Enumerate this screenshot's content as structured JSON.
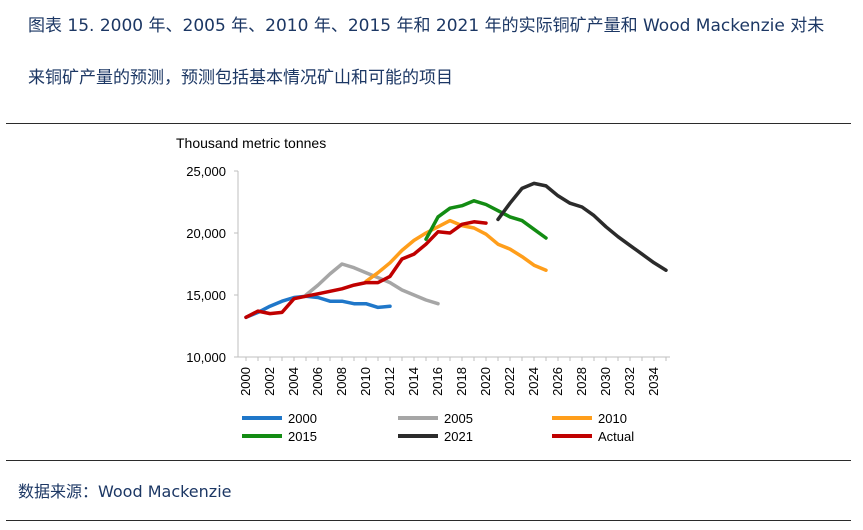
{
  "header": {
    "title_line1": "图表 15. 2000 年、2005 年、2010 年、2015 年和 2021 年的实际铜矿产量和 Wood Mackenzie 对未",
    "title_line2": "来铜矿产量的预测，预测包括基本情况矿山和可能的项目"
  },
  "footer": {
    "source": "数据来源：Wood Mackenzie"
  },
  "chart_data": {
    "type": "line",
    "ylabel": "Thousand metric tonnes",
    "ylim": [
      10000,
      25000
    ],
    "yticks": [
      10000,
      15000,
      20000,
      25000
    ],
    "ytick_labels": [
      "10,000",
      "15,000",
      "20,000",
      "25,000"
    ],
    "xlim": [
      2000,
      2035
    ],
    "xticks": [
      2000,
      2002,
      2004,
      2006,
      2008,
      2010,
      2012,
      2014,
      2016,
      2018,
      2020,
      2022,
      2024,
      2026,
      2028,
      2030,
      2032,
      2034
    ],
    "xtick_labels": [
      "2000",
      "2002",
      "2004",
      "2006",
      "2008",
      "2010",
      "2012",
      "2014",
      "2016",
      "2018",
      "2020",
      "2022",
      "2024",
      "2026",
      "2028",
      "2030",
      "2032",
      "2034"
    ],
    "legend_position": "bottom",
    "series": [
      {
        "name": "2000",
        "color": "#1f77c9",
        "x": [
          2000,
          2001,
          2002,
          2003,
          2004,
          2005,
          2006,
          2007,
          2008,
          2009,
          2010,
          2011,
          2012
        ],
        "y": [
          13200,
          13600,
          14100,
          14500,
          14800,
          14900,
          14800,
          14500,
          14500,
          14300,
          14300,
          14000,
          14100
        ]
      },
      {
        "name": "2005",
        "color": "#a6a6a6",
        "x": [
          2005,
          2006,
          2007,
          2008,
          2009,
          2010,
          2011,
          2012,
          2013,
          2014,
          2015,
          2016
        ],
        "y": [
          15000,
          15800,
          16700,
          17500,
          17200,
          16800,
          16400,
          16000,
          15400,
          15000,
          14600,
          14300
        ]
      },
      {
        "name": "2010",
        "color": "#ff9e1b",
        "x": [
          2010,
          2011,
          2012,
          2013,
          2014,
          2015,
          2016,
          2017,
          2018,
          2019,
          2020,
          2021,
          2022,
          2023,
          2024,
          2025
        ],
        "y": [
          16100,
          16800,
          17600,
          18600,
          19400,
          20000,
          20500,
          21000,
          20600,
          20400,
          19900,
          19100,
          18700,
          18100,
          17400,
          17000
        ]
      },
      {
        "name": "2015",
        "color": "#138c13",
        "x": [
          2015,
          2016,
          2017,
          2018,
          2019,
          2020,
          2021,
          2022,
          2023,
          2024,
          2025
        ],
        "y": [
          19500,
          21300,
          22000,
          22200,
          22600,
          22300,
          21800,
          21300,
          21000,
          20300,
          19600
        ]
      },
      {
        "name": "2021",
        "color": "#2b2b2b",
        "x": [
          2021,
          2022,
          2023,
          2024,
          2025,
          2026,
          2027,
          2028,
          2029,
          2030,
          2031,
          2032,
          2033,
          2034,
          2035
        ],
        "y": [
          21100,
          22400,
          23600,
          24000,
          23800,
          23000,
          22400,
          22100,
          21400,
          20500,
          19700,
          19000,
          18300,
          17600,
          17000
        ]
      },
      {
        "name": "Actual",
        "color": "#c00000",
        "x": [
          2000,
          2001,
          2002,
          2003,
          2004,
          2005,
          2006,
          2007,
          2008,
          2009,
          2010,
          2011,
          2012,
          2013,
          2014,
          2015,
          2016,
          2017,
          2018,
          2019,
          2020
        ],
        "y": [
          13200,
          13700,
          13500,
          13600,
          14700,
          14900,
          15100,
          15300,
          15500,
          15800,
          16000,
          16000,
          16500,
          17900,
          18300,
          19100,
          20100,
          20000,
          20700,
          20900,
          20800
        ]
      }
    ]
  }
}
